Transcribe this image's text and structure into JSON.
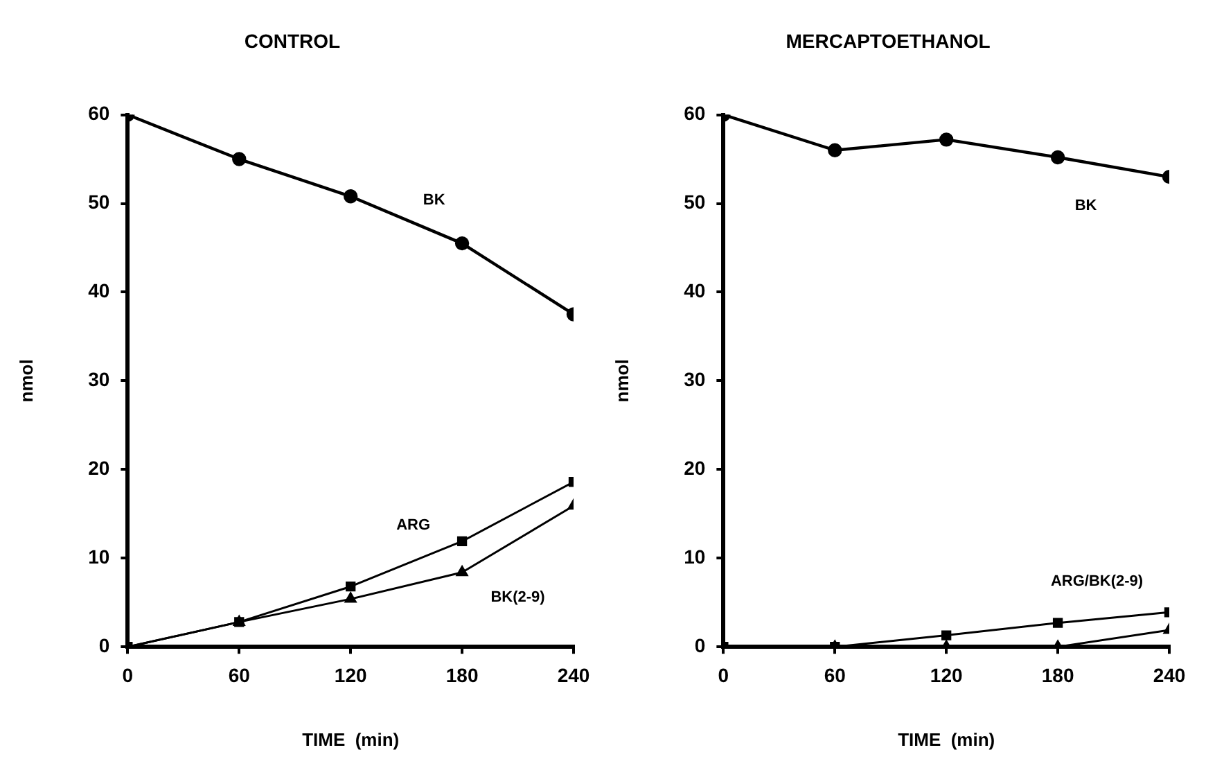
{
  "chart_data": [
    {
      "type": "line",
      "title": "CONTROL",
      "xlabel": "TIME  (min)",
      "ylabel": "nmol",
      "x": [
        0,
        60,
        120,
        180,
        240
      ],
      "xlim": [
        0,
        240
      ],
      "xticks": [
        0,
        60,
        120,
        180,
        240
      ],
      "ylim": [
        0,
        60
      ],
      "yticks": [
        0,
        10,
        20,
        30,
        40,
        50,
        60
      ],
      "grid": false,
      "legend": false,
      "series": [
        {
          "name": "BK",
          "color": "#000000",
          "marker": "circle",
          "values": [
            60,
            55,
            50.8,
            45.5,
            37.5
          ]
        },
        {
          "name": "ARG",
          "color": "#000000",
          "marker": "square",
          "values": [
            0,
            2.8,
            6.8,
            11.9,
            18.6
          ]
        },
        {
          "name": "BK(2-9)",
          "color": "#000000",
          "marker": "triangle",
          "values": [
            0,
            2.8,
            5.4,
            8.4,
            15.9
          ]
        }
      ]
    },
    {
      "type": "line",
      "title": "MERCAPTOETHANOL",
      "xlabel": "TIME  (min)",
      "ylabel": "nmol",
      "x": [
        0,
        60,
        120,
        180,
        240
      ],
      "xlim": [
        0,
        240
      ],
      "xticks": [
        0,
        60,
        120,
        180,
        240
      ],
      "ylim": [
        0,
        60
      ],
      "yticks": [
        0,
        10,
        20,
        30,
        40,
        50,
        60
      ],
      "grid": false,
      "legend": false,
      "series": [
        {
          "name": "BK",
          "color": "#000000",
          "marker": "circle",
          "values": [
            60,
            56,
            57.2,
            55.2,
            53
          ]
        },
        {
          "name": "ARG/BK(2-9)",
          "color": "#000000",
          "marker": "square",
          "values": [
            0,
            0,
            1.3,
            2.7,
            3.9
          ]
        },
        {
          "color": "#000000",
          "marker": "triangle",
          "values": [
            0,
            0,
            0,
            0,
            1.9
          ]
        }
      ]
    }
  ]
}
